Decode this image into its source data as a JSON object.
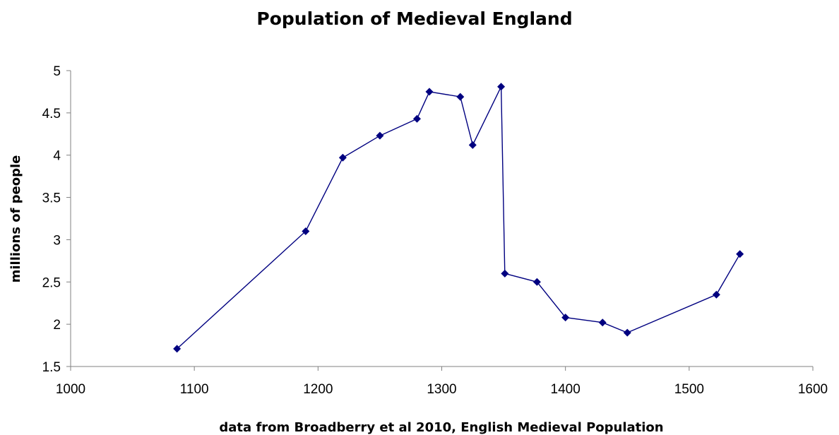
{
  "chart_data": {
    "type": "line",
    "title": "Population of Medieval England",
    "xlabel": "data from Broadberry et al 2010, English Medieval Population",
    "ylabel": "millions of people",
    "xlim": [
      1000,
      1600
    ],
    "ylim": [
      1.5,
      5
    ],
    "x_ticks": [
      1000,
      1100,
      1200,
      1300,
      1400,
      1500,
      1600
    ],
    "y_ticks": [
      1.5,
      2,
      2.5,
      3,
      3.5,
      4,
      4.5,
      5
    ],
    "x_tick_labels": [
      "1000",
      "1100",
      "1200",
      "1300",
      "1400",
      "1500",
      "1600"
    ],
    "y_tick_labels": [
      "1.5",
      "2",
      "2.5",
      "3",
      "3.5",
      "4",
      "4.5",
      "5"
    ],
    "grid": false,
    "legend": "none",
    "series_color": "#000080",
    "series": [
      {
        "x": [
          1086,
          1190,
          1220,
          1250,
          1280,
          1290,
          1315,
          1325,
          1348,
          1351,
          1377,
          1400,
          1430,
          1450,
          1522,
          1541
        ],
        "values": [
          1.71,
          3.1,
          3.97,
          4.23,
          4.43,
          4.75,
          4.69,
          4.12,
          4.81,
          2.6,
          2.5,
          2.08,
          2.02,
          1.9,
          2.35,
          2.83
        ]
      }
    ]
  }
}
